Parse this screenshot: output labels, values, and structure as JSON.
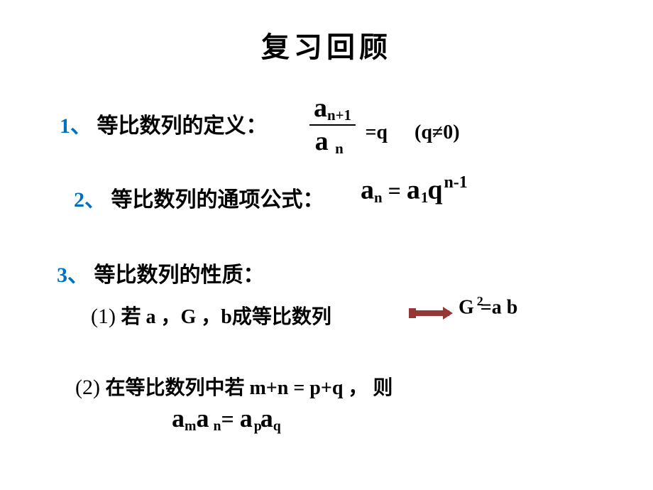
{
  "colors": {
    "bg": "#ffffff",
    "text": "#000000",
    "accent": "#0070c0",
    "arrow": "#953735"
  },
  "fontsizes": {
    "title": 40,
    "heading": 30,
    "math_large": 38,
    "math_mid": 30,
    "math_small": 26
  },
  "title": "复习回顾",
  "item1": {
    "num": "1、",
    "label": "等比数列的定义：",
    "frac_num_base": "a",
    "frac_num_sub": "n+1",
    "frac_den_base": "a",
    "frac_den_sub": "n",
    "eq": "=q",
    "cond": "(q≠0)"
  },
  "item2": {
    "num": "2、",
    "label": "等比数列的通项公式：",
    "lhs_a": "a",
    "lhs_sub": "n",
    "eq": " = ",
    "rhs_a": "a",
    "rhs_sub1": "1",
    "rhs_q": "q",
    "rhs_sup": "n-1"
  },
  "item3": {
    "num": "3、",
    "label": "等比数列的性质：",
    "sub1": {
      "idx": "(1)",
      "text1": " 若 a ，G ，b",
      "text2": "成等比数列",
      "rhs_G": "G",
      "rhs_sup": "2",
      "rhs_eq": "=a b"
    },
    "sub2": {
      "idx": "(2)",
      "text1": " 在等比数列中若 m+n = p+q ， 则",
      "eq_a1": "a",
      "eq_s1": "m",
      "eq_a2": "a",
      "eq_s2": "n",
      "eq_mid": "= ",
      "eq_a3": "a",
      "eq_s3": "p",
      "eq_a4": "a",
      "eq_s4": "q"
    }
  },
  "arrow": {
    "width": 60,
    "height": 18
  }
}
